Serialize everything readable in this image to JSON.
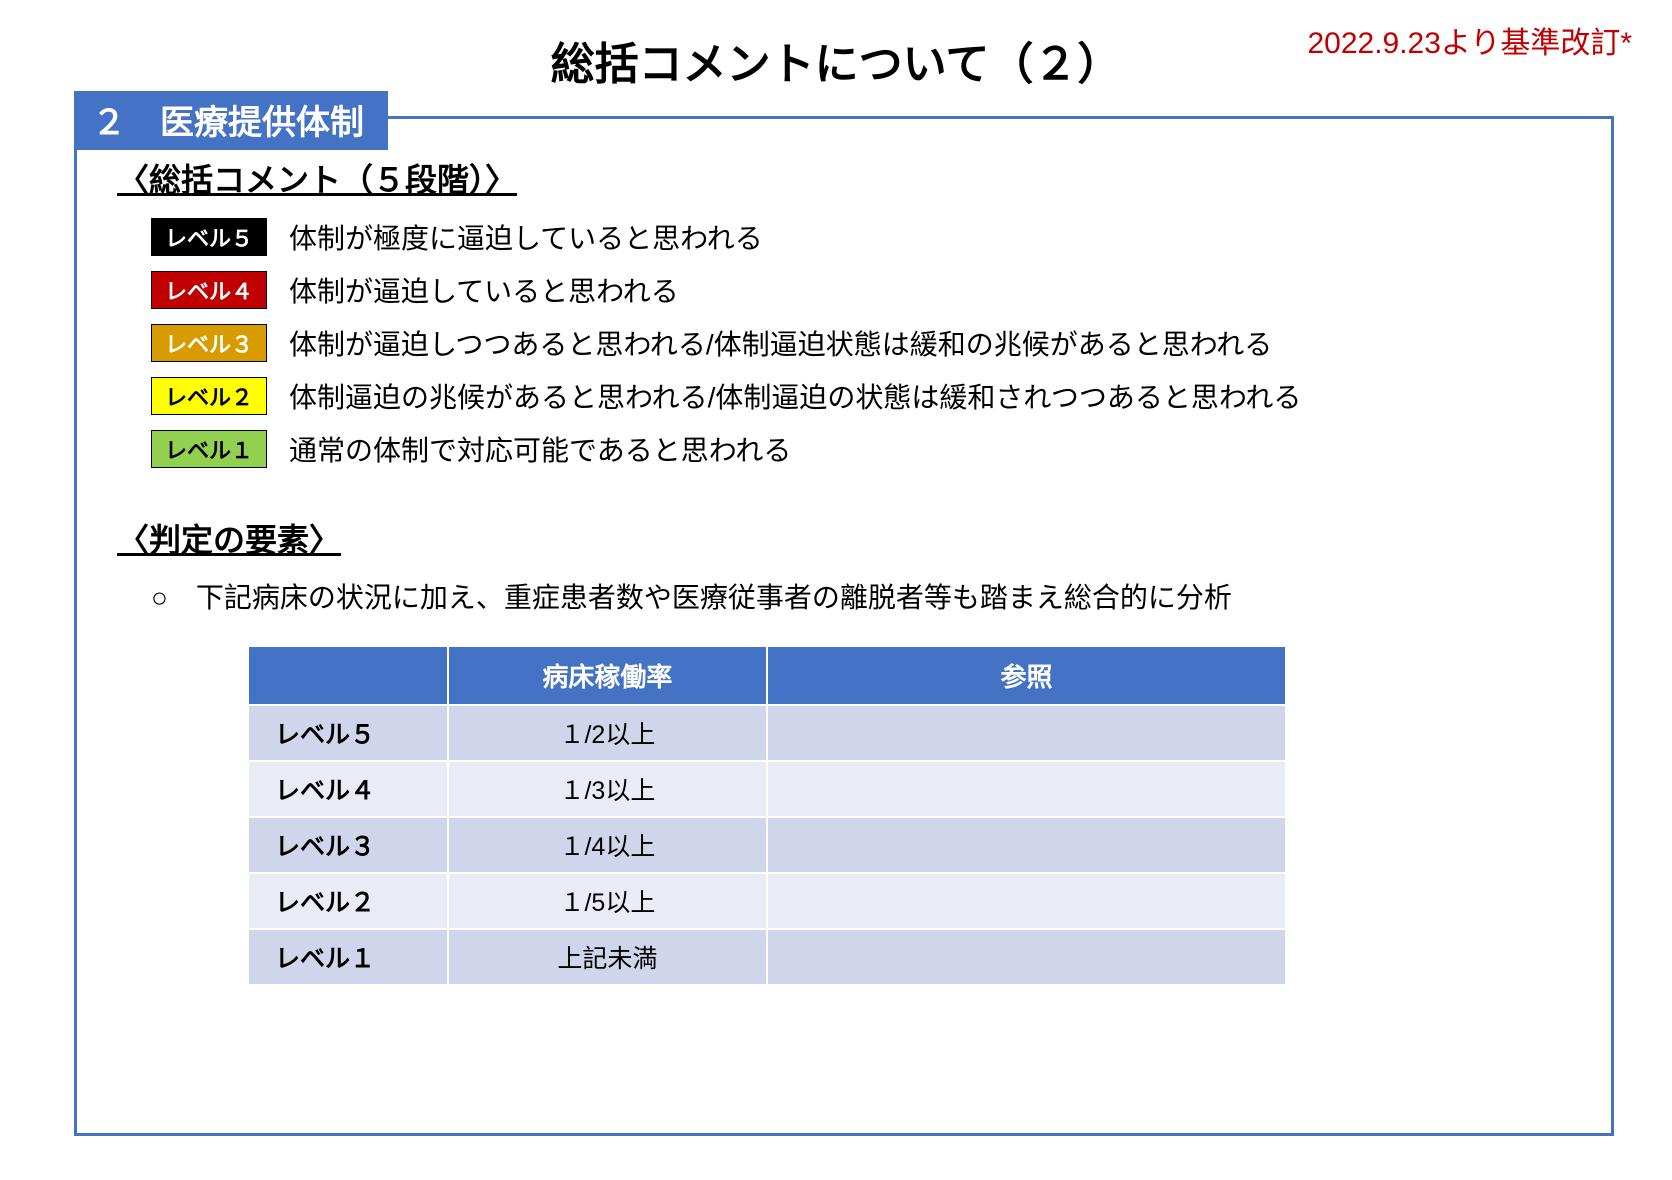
{
  "title": "総括コメントについて（２）",
  "revision": "2022.9.23より基準改訂*",
  "section": {
    "header": "２　医療提供体制",
    "subheading": "〈総括コメント（５段階）〉",
    "levels": [
      {
        "badge": "レベル５",
        "bg": "#000000",
        "fg": "#ffffff",
        "desc": "体制が極度に逼迫していると思われる"
      },
      {
        "badge": "レベル４",
        "bg": "#c00000",
        "fg": "#ffffff",
        "desc": "体制が逼迫していると思われる"
      },
      {
        "badge": "レベル３",
        "bg": "#d89c00",
        "fg": "#ffffff",
        "desc": "体制が逼迫しつつあると思われる/体制逼迫状態は緩和の兆候があると思われる"
      },
      {
        "badge": "レベル２",
        "bg": "#ffff00",
        "fg": "#000000",
        "desc": "体制逼迫の兆候があると思われる/体制逼迫の状態は緩和されつつあると思われる"
      },
      {
        "badge": "レベル１",
        "bg": "#92d050",
        "fg": "#000000",
        "desc": "通常の体制で対応可能であると思われる"
      }
    ],
    "criteria_heading": "〈判定の要素〉",
    "criteria_note": "○　下記病床の状況に加え、重症患者数や医療従事者の離脱者等も踏まえ総合的に分析",
    "table": {
      "columns": [
        "",
        "病床稼働率",
        "参照"
      ],
      "rows": [
        [
          "レベル５",
          "１/2以上",
          ""
        ],
        [
          "レベル４",
          "１/3以上",
          ""
        ],
        [
          "レベル３",
          "１/4以上",
          ""
        ],
        [
          "レベル２",
          "１/5以上",
          ""
        ],
        [
          "レベル１",
          "上記未満",
          ""
        ]
      ],
      "header_bg": "#4472c4",
      "header_fg": "#ffffff",
      "row_odd_bg": "#cfd5ea",
      "row_even_bg": "#e9ebf5"
    }
  },
  "colors": {
    "frame_border": "#4472c4",
    "revision_text": "#c00000"
  }
}
